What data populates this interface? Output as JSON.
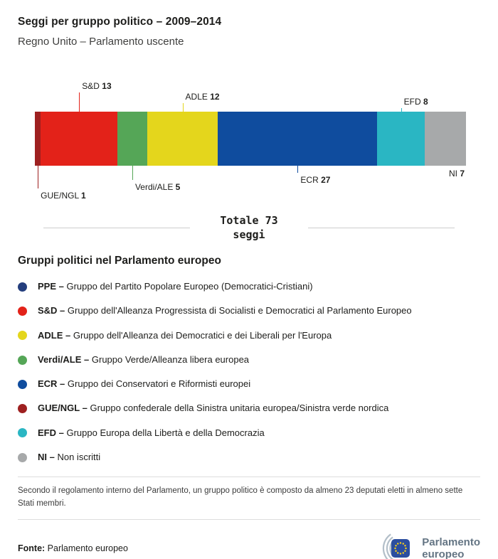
{
  "header": {
    "title": "Seggi per gruppo politico – 2009–2014",
    "subtitle": "Regno Unito – Parlamento uscente"
  },
  "chart_data": {
    "type": "bar",
    "stacked": true,
    "orientation": "horizontal",
    "total": 73,
    "total_label_line1": "Totale 73",
    "total_label_line2": "seggi",
    "categories": [
      "GUE/NGL",
      "S&D",
      "Verdi/ALE",
      "ADLE",
      "ECR",
      "EFD",
      "NI"
    ],
    "values": [
      1,
      13,
      5,
      12,
      27,
      8,
      7
    ],
    "series": [
      {
        "name": "GUE/NGL",
        "value": 1,
        "color": "#9e2020",
        "label_side": "below",
        "line_len": 32
      },
      {
        "name": "S&D",
        "value": 13,
        "color": "#e32219",
        "label_side": "above",
        "line_len": 27
      },
      {
        "name": "Verdi/ALE",
        "value": 5,
        "color": "#55a657",
        "label_side": "below",
        "line_len": 20
      },
      {
        "name": "ADLE",
        "value": 12,
        "color": "#e4d61c",
        "label_side": "above",
        "line_len": 12
      },
      {
        "name": "ECR",
        "value": 27,
        "color": "#0f4c9e",
        "label_side": "below",
        "line_len": 10
      },
      {
        "name": "EFD",
        "value": 8,
        "color": "#2ab6c3",
        "label_side": "above",
        "line_len": 5
      },
      {
        "name": "NI",
        "value": 7,
        "color": "#a7a9aa",
        "label_side": "below-right",
        "line_len": 0
      }
    ]
  },
  "legend": {
    "heading": "Gruppi politici nel Parlamento europeo",
    "separator": " – ",
    "items": [
      {
        "abbr": "PPE",
        "desc": "Gruppo del Partito Popolare Europeo (Democratici-Cristiani)",
        "color": "#243e7d"
      },
      {
        "abbr": "S&D",
        "desc": "Gruppo dell'Alleanza Progressista di Socialisti e Democratici al Parlamento Europeo",
        "color": "#e32219"
      },
      {
        "abbr": "ADLE",
        "desc": "Gruppo dell'Alleanza dei Democratici e dei Liberali per l'Europa",
        "color": "#e4d61c"
      },
      {
        "abbr": "Verdi/ALE",
        "desc": "Gruppo Verde/Alleanza libera europea",
        "color": "#55a657"
      },
      {
        "abbr": "ECR",
        "desc": "Gruppo dei Conservatori e Riformisti europei",
        "color": "#0f4c9e"
      },
      {
        "abbr": "GUE/NGL",
        "desc": "Gruppo confederale della Sinistra unitaria europea/Sinistra verde nordica",
        "color": "#9e2020"
      },
      {
        "abbr": "EFD",
        "desc": "Gruppo Europa della Libertà e della Democrazia",
        "color": "#2ab6c3"
      },
      {
        "abbr": "NI",
        "desc": "Non iscritti",
        "color": "#a7a9aa"
      }
    ]
  },
  "footnote": "Secondo il regolamento interno del Parlamento, un gruppo politico è composto da almeno 23 deputati eletti in almeno sette Stati membri.",
  "footer": {
    "source_label": "Fonte:",
    "source_value": "Parlamento europeo",
    "logo_line1": "Parlamento",
    "logo_line2": "europeo"
  }
}
